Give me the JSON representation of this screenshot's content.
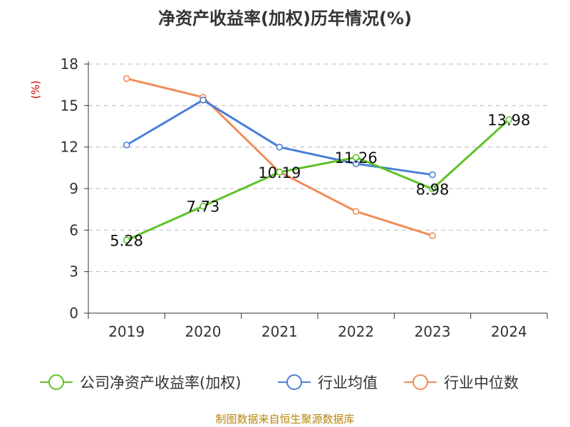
{
  "chart_data": {
    "type": "line",
    "title": "净资产收益率(加权)历年情况(%)",
    "ylabel": "(%)",
    "xlabel": "",
    "categories": [
      "2019",
      "2020",
      "2021",
      "2022",
      "2023",
      "2024"
    ],
    "ylim": [
      0,
      18
    ],
    "yticks": [
      0,
      3,
      6,
      9,
      12,
      15,
      18
    ],
    "grid": true,
    "legend_position": "bottom",
    "series": [
      {
        "name": "公司净资产收益率(加权)",
        "color": "#5ec228",
        "values": [
          5.28,
          7.73,
          10.19,
          11.26,
          8.98,
          13.98
        ],
        "labels": [
          "5.28",
          "7.73",
          "10.19",
          "11.26",
          "8.98",
          "13.98"
        ]
      },
      {
        "name": "行业均值",
        "color": "#4a7fd8",
        "values": [
          12.15,
          15.4,
          12.0,
          10.8,
          10.0,
          null
        ]
      },
      {
        "name": "行业中位数",
        "color": "#f08c5a",
        "values": [
          16.95,
          15.6,
          10.2,
          7.35,
          5.6,
          null
        ]
      }
    ],
    "source": "制图数据来自恒生聚源数据库"
  }
}
